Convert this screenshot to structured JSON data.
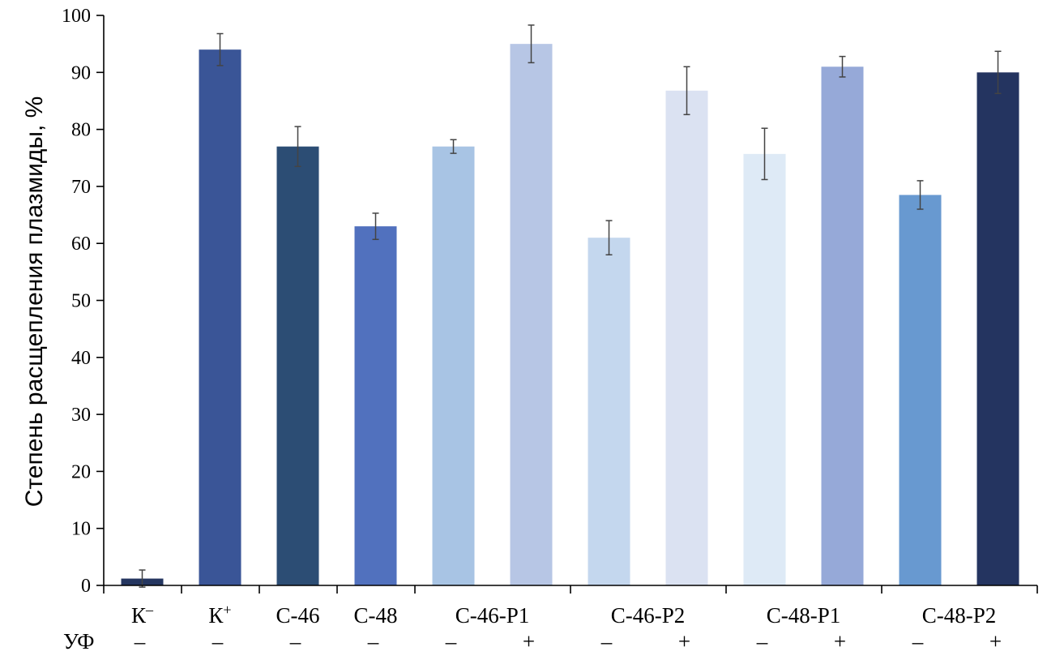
{
  "chart_data": {
    "type": "bar",
    "ylabel": "Степень расщепления плазмиды, %",
    "ylim": [
      0,
      100
    ],
    "yticks": [
      0,
      10,
      20,
      30,
      40,
      50,
      60,
      70,
      80,
      90,
      100
    ],
    "grid": false,
    "legend": "none",
    "bars": [
      {
        "value": 1.2,
        "error": 1.5,
        "uv": "–",
        "color": "#253660"
      },
      {
        "value": 94.0,
        "error": 2.8,
        "uv": "–",
        "color": "#3a5597"
      },
      {
        "value": 77.0,
        "error": 3.5,
        "uv": "–",
        "color": "#2c4d74"
      },
      {
        "value": 63.0,
        "error": 2.3,
        "uv": "–",
        "color": "#5171be"
      },
      {
        "value": 77.0,
        "error": 1.2,
        "uv": "–",
        "color": "#a8c4e4"
      },
      {
        "value": 95.0,
        "error": 3.3,
        "uv": "+",
        "color": "#b7c6e5"
      },
      {
        "value": 61.0,
        "error": 3.0,
        "uv": "–",
        "color": "#c4d7ee"
      },
      {
        "value": 86.8,
        "error": 4.2,
        "uv": "+",
        "color": "#dbe2f2"
      },
      {
        "value": 75.7,
        "error": 4.5,
        "uv": "–",
        "color": "#deeaf6"
      },
      {
        "value": 91.0,
        "error": 1.8,
        "uv": "+",
        "color": "#96a9d8"
      },
      {
        "value": 68.5,
        "error": 2.5,
        "uv": "–",
        "color": "#6899d0"
      },
      {
        "value": 90.0,
        "error": 3.7,
        "uv": "+",
        "color": "#243460"
      }
    ],
    "categories": [
      {
        "label": "К",
        "sup": "–",
        "bars": [
          0
        ]
      },
      {
        "label": "К",
        "sup": "+",
        "bars": [
          1
        ]
      },
      {
        "label": "С-46",
        "sup": "",
        "bars": [
          2
        ]
      },
      {
        "label": "С-48",
        "sup": "",
        "bars": [
          3
        ]
      },
      {
        "label": "С-46-Р1",
        "sup": "",
        "bars": [
          4,
          5
        ]
      },
      {
        "label": "С-46-Р2",
        "sup": "",
        "bars": [
          6,
          7
        ]
      },
      {
        "label": "С-48-Р1",
        "sup": "",
        "bars": [
          8,
          9
        ]
      },
      {
        "label": "С-48-Р2",
        "sup": "",
        "bars": [
          10,
          11
        ]
      }
    ],
    "uv_row_label": "УФ"
  }
}
